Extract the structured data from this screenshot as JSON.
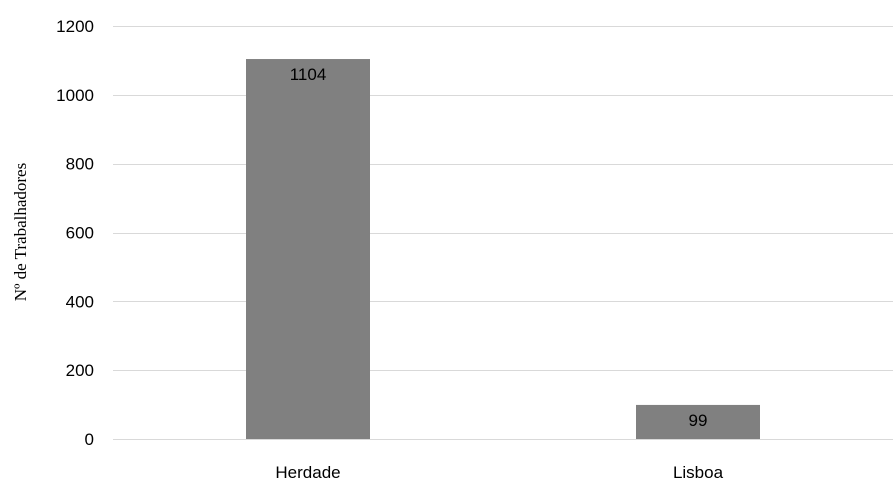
{
  "chart_data": {
    "type": "bar",
    "title": "",
    "xlabel": "",
    "ylabel": "Nº de Trabalhadores",
    "categories": [
      "Herdade",
      "Lisboa"
    ],
    "values": [
      1104,
      99
    ],
    "data_labels": [
      "1104",
      "99"
    ],
    "ylim": [
      0,
      1200
    ],
    "yticks": [
      0,
      200,
      400,
      600,
      800,
      1000,
      1200
    ],
    "ytick_labels": [
      "0",
      "200",
      "400",
      "600",
      "800",
      "1000",
      "1200"
    ],
    "grid": true,
    "legend": "none",
    "bar_color": "#808080",
    "grid_color": "#d9d9d9"
  }
}
